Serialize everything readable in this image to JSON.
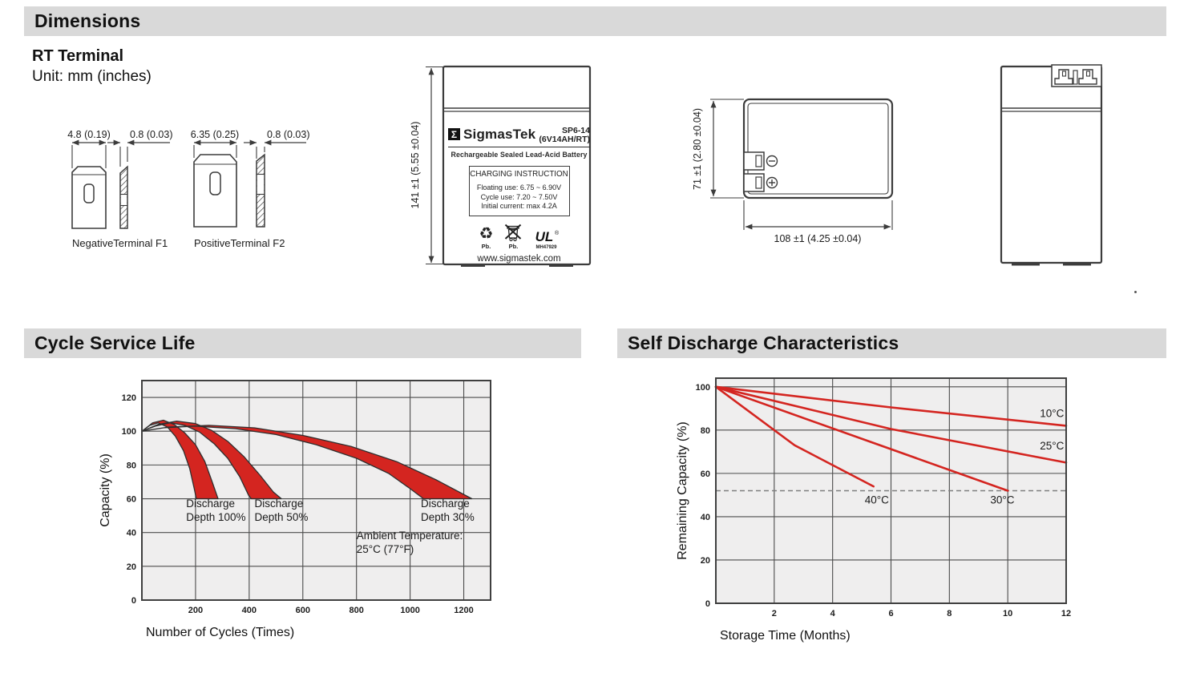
{
  "bars": {
    "dimensions": "Dimensions",
    "cycle": "Cycle Service Life",
    "self_discharge": "Self Discharge Characteristics"
  },
  "rt": {
    "title": "RT Terminal",
    "unit": "Unit: mm (inches)"
  },
  "terminals": {
    "f1": {
      "width": "4.8 (0.19)",
      "thickness": "0.8 (0.03)",
      "caption": "NegativeTerminal F1"
    },
    "f2": {
      "width": "6.35 (0.25)",
      "thickness": "0.8 (0.03)",
      "caption": "PositiveTerminal F2"
    }
  },
  "front_view": {
    "height_label": "141 ±1 (5.55 ±0.04)",
    "brand_sigma": "Σ",
    "brand": "SigmasTek",
    "model": "SP6-14",
    "model_sub": "(6V14AH/RT)",
    "subtitle": "Rechargeable Sealed Lead-Acid Battery",
    "charging_title": "CHARGING INSTRUCTION",
    "charging_lines": [
      "Floating use: 6.75 ~ 6.90V",
      "Cycle use: 7.20 ~ 7.50V",
      "Initial current: max 4.2A"
    ],
    "recycle_glyph": "♻",
    "pb_recycle": "Pb.",
    "pb_bin": "Pb.",
    "ul_text": "UL",
    "ul_reg": "®",
    "ul_code": "MH47929",
    "website": "www.sigmastek.com"
  },
  "top_view": {
    "height_label": "71 ±1 (2.80 ±0.04)",
    "width_label": "108 ±1 (4.25 ±0.04)"
  },
  "chart_data": [
    {
      "type": "area",
      "title": "Cycle Service Life",
      "xlabel": "Number of Cycles (Times)",
      "ylabel": "Capacity (%)",
      "xlim": [
        0,
        1300
      ],
      "ylim": [
        0,
        130
      ],
      "xticks": [
        0,
        200,
        400,
        600,
        800,
        1000,
        1200
      ],
      "yticks": [
        0,
        20,
        40,
        60,
        80,
        100,
        120
      ],
      "grid": true,
      "bands": [
        {
          "name": "Discharge Depth 100%",
          "upper": [
            [
              0,
              100
            ],
            [
              40,
              105
            ],
            [
              80,
              106.5
            ],
            [
              120,
              104
            ],
            [
              160,
              99
            ],
            [
              200,
              92
            ],
            [
              235,
              82
            ],
            [
              262,
              70
            ],
            [
              284,
              60
            ]
          ],
          "lower": [
            [
              0,
              100
            ],
            [
              30,
              103.5
            ],
            [
              60,
              105
            ],
            [
              95,
              102.5
            ],
            [
              125,
              97
            ],
            [
              155,
              88.5
            ],
            [
              178,
              78
            ],
            [
              195,
              66
            ],
            [
              203,
              60
            ]
          ]
        },
        {
          "name": "Discharge Depth 50%",
          "upper": [
            [
              0,
              100
            ],
            [
              60,
              104
            ],
            [
              130,
              106
            ],
            [
              200,
              104.5
            ],
            [
              260,
              100.5
            ],
            [
              320,
              94
            ],
            [
              380,
              85
            ],
            [
              440,
              74
            ],
            [
              490,
              64
            ],
            [
              520,
              60
            ]
          ],
          "lower": [
            [
              0,
              100
            ],
            [
              50,
              103
            ],
            [
              105,
              105
            ],
            [
              160,
              103.5
            ],
            [
              215,
              99.5
            ],
            [
              270,
              92.5
            ],
            [
              320,
              84
            ],
            [
              365,
              73
            ],
            [
              398,
              62
            ],
            [
              408,
              60
            ]
          ]
        },
        {
          "name": "Discharge Depth 30%",
          "upper": [
            [
              0,
              100
            ],
            [
              100,
              102.5
            ],
            [
              250,
              103.5
            ],
            [
              420,
              102
            ],
            [
              600,
              97.5
            ],
            [
              780,
              91
            ],
            [
              950,
              82
            ],
            [
              1100,
              71
            ],
            [
              1230,
              60
            ]
          ],
          "lower": [
            [
              0,
              100
            ],
            [
              80,
              102
            ],
            [
              200,
              103
            ],
            [
              350,
              101.5
            ],
            [
              500,
              98
            ],
            [
              650,
              92
            ],
            [
              800,
              84
            ],
            [
              920,
              75
            ],
            [
              1000,
              66
            ],
            [
              1050,
              60
            ]
          ]
        }
      ],
      "annotations": [
        {
          "text": [
            "Discharge",
            "Depth 100%"
          ],
          "x": 165,
          "y": 55
        },
        {
          "text": [
            "Discharge",
            "Depth 50%"
          ],
          "x": 420,
          "y": 55
        },
        {
          "text": [
            "Discharge",
            "Depth 30%"
          ],
          "x": 1040,
          "y": 55
        },
        {
          "text": [
            "Ambient Temperature:",
            "25°C (77°F)"
          ],
          "x": 800,
          "y": 36
        }
      ],
      "colors": {
        "band": "#d42520",
        "outline": "#2f2f2f",
        "plot_bg": "#efeeee",
        "grid": "#4b4b4b",
        "frame": "#3f3f3f",
        "line": "#d42520"
      }
    },
    {
      "type": "line",
      "title": "Self Discharge Characteristics",
      "xlabel": "Storage Time (Months)",
      "ylabel": "Remaining Capacity (%)",
      "xlim": [
        0,
        12
      ],
      "ylim": [
        0,
        104
      ],
      "xticks": [
        0,
        2,
        4,
        6,
        8,
        10,
        12
      ],
      "yticks": [
        0,
        20,
        40,
        60,
        80,
        100
      ],
      "grid": true,
      "series": [
        {
          "name": "10°C",
          "points": [
            [
              0,
              100
            ],
            [
              6,
              90.5
            ],
            [
              12,
              82
            ]
          ],
          "label_x": 11.1,
          "label_y": 86
        },
        {
          "name": "25°C",
          "points": [
            [
              0,
              100
            ],
            [
              6,
              80.5
            ],
            [
              12,
              65
            ]
          ],
          "label_x": 11.1,
          "label_y": 71
        },
        {
          "name": "30°C",
          "points": [
            [
              0,
              100
            ],
            [
              10,
              52
            ]
          ],
          "label_x": 9.4,
          "label_y": 46
        },
        {
          "name": "40°C",
          "points": [
            [
              0,
              100
            ],
            [
              2.7,
              73
            ],
            [
              5.4,
              54
            ]
          ],
          "label_x": 5.1,
          "label_y": 46
        }
      ],
      "dashed_line_y": 52,
      "colors": {
        "line": "#d42520",
        "plot_bg": "#efeeee",
        "grid": "#4b4b4b",
        "frame": "#3f3f3f",
        "dashed": "#7f7f7f",
        "band": "#d42520",
        "outline": "#2f2f2f"
      }
    }
  ]
}
